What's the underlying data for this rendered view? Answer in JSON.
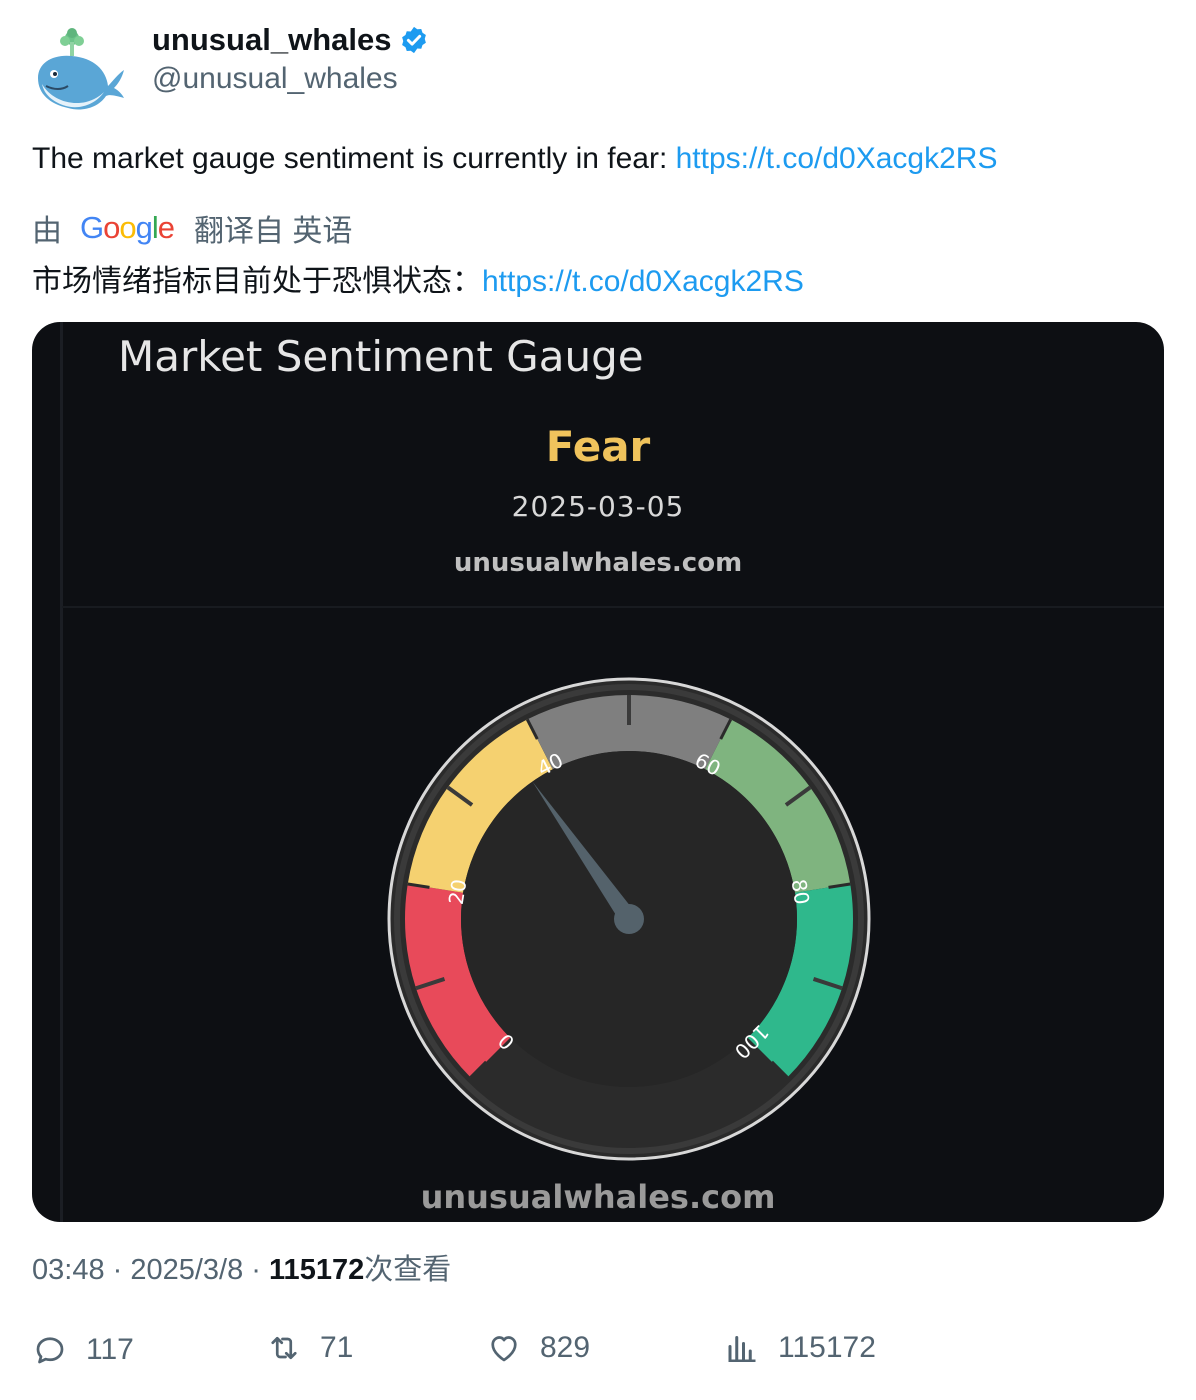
{
  "author": {
    "display_name": "unusual_whales",
    "handle": "@unusual_whales",
    "verified": true,
    "avatar_icon": "whale-avatar-icon"
  },
  "tweet": {
    "text": "The market gauge sentiment is currently in fear: ",
    "link": "https://t.co/d0Xacgk2RS"
  },
  "translation": {
    "by": "由",
    "provider": "Google",
    "from_label": "翻译自 英语",
    "text": "市场情绪指标目前处于恐惧状态：",
    "link": "https://t.co/d0Xacgk2RS"
  },
  "media": {
    "title": "Market Sentiment Gauge",
    "sentiment": "Fear",
    "date": "2025-03-05",
    "site": "unusualwhales.com",
    "watermark": "unusualwhales.com",
    "gauge": {
      "value": 37,
      "min": 0,
      "max": 100,
      "tick_labels": [
        "0",
        "20",
        "40",
        "60",
        "80",
        "100"
      ],
      "bands": [
        {
          "from": 0,
          "to": 20,
          "color": "#e84a5a"
        },
        {
          "from": 20,
          "to": 40,
          "color": "#f5d170"
        },
        {
          "from": 40,
          "to": 60,
          "color": "#7f7f7f"
        },
        {
          "from": 60,
          "to": 80,
          "color": "#7fb47f"
        },
        {
          "from": 80,
          "to": 100,
          "color": "#2fb88c"
        }
      ]
    }
  },
  "meta": {
    "time": "03:48",
    "date": "2025/3/8",
    "views": "115172",
    "views_suffix": "次查看"
  },
  "actions": {
    "replies": "117",
    "retweets": "71",
    "likes": "829",
    "views": "115172"
  },
  "colors": {
    "link": "#1d9bf0",
    "secondary_text": "#536471",
    "fear": "#f0c35c",
    "media_bg": "#0d0f13"
  }
}
